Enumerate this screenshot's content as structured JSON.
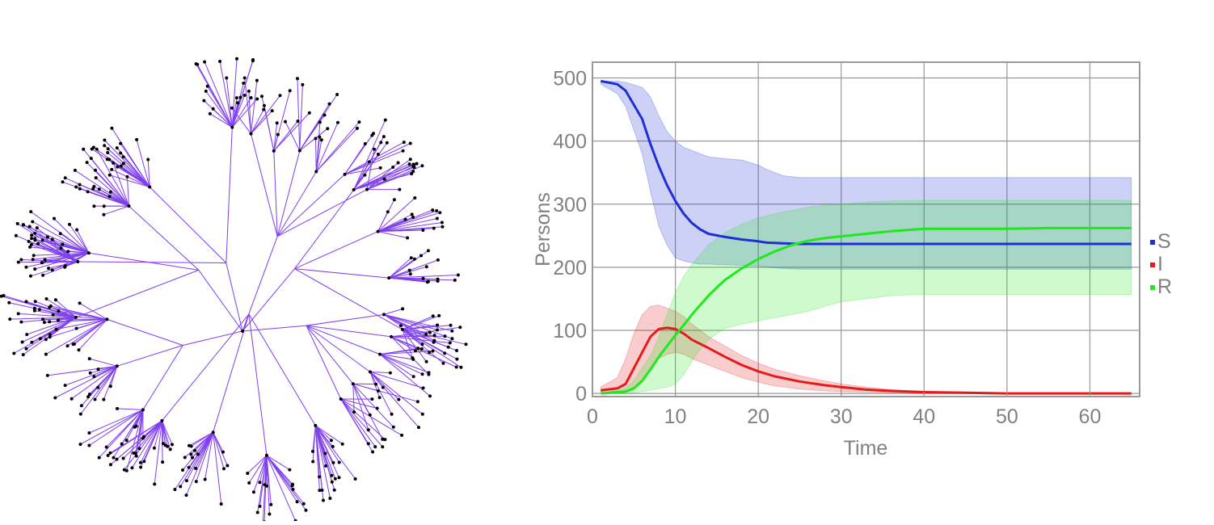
{
  "colors": {
    "tree_edge": "#7f3fef",
    "tree_node": "#000000",
    "S": "#1d2fd6",
    "I": "#e51b1b",
    "R": "#1fe81f",
    "grid": "#999999",
    "frame": "#999999",
    "text": "#808080"
  },
  "tree": {
    "type": "contact-tree"
  },
  "chart_data": {
    "type": "line",
    "xlabel": "Time",
    "ylabel": "Persons",
    "xlim": [
      0,
      66
    ],
    "ylim": [
      -5,
      525
    ],
    "xticks": [
      0,
      10,
      20,
      30,
      40,
      50,
      60
    ],
    "yticks": [
      0,
      100,
      200,
      300,
      400,
      500
    ],
    "grid": true,
    "legend_placement": "right",
    "series": [
      {
        "name": "S",
        "color": "#1d2fd6",
        "x": [
          1,
          3,
          4,
          6,
          7,
          8,
          9,
          10,
          11,
          12,
          13,
          14,
          16,
          18,
          20,
          21,
          23,
          25,
          30,
          40,
          50,
          65
        ],
        "y": [
          495,
          490,
          480,
          435,
          395,
          360,
          330,
          305,
          285,
          270,
          260,
          253,
          248,
          244,
          241,
          239,
          238,
          237,
          237,
          237,
          237,
          237
        ],
        "band_upper": [
          495,
          495,
          493,
          485,
          470,
          440,
          415,
          400,
          390,
          385,
          380,
          375,
          372,
          370,
          362,
          355,
          345,
          342,
          342,
          342,
          342,
          342
        ],
        "band_lower": [
          490,
          475,
          455,
          380,
          320,
          265,
          235,
          215,
          210,
          207,
          205,
          205,
          204,
          203,
          202,
          200,
          198,
          197,
          197,
          197,
          197,
          197
        ]
      },
      {
        "name": "I",
        "color": "#e51b1b",
        "x": [
          1,
          3,
          4,
          5,
          6,
          7,
          8,
          9,
          10,
          11,
          12,
          14,
          16,
          18,
          20,
          22,
          25,
          28,
          30,
          33,
          36,
          40,
          45,
          50,
          65
        ],
        "y": [
          5,
          8,
          15,
          40,
          65,
          90,
          102,
          104,
          102,
          95,
          85,
          72,
          58,
          45,
          35,
          27,
          19,
          13,
          10,
          6,
          4,
          2,
          1,
          0,
          0
        ],
        "band_upper": [
          10,
          25,
          55,
          95,
          125,
          138,
          140,
          135,
          130,
          122,
          110,
          90,
          75,
          60,
          48,
          38,
          28,
          20,
          15,
          10,
          6,
          3,
          2,
          1,
          1
        ],
        "band_lower": [
          2,
          3,
          4,
          8,
          20,
          40,
          55,
          62,
          65,
          62,
          55,
          45,
          35,
          25,
          18,
          12,
          7,
          4,
          3,
          2,
          1,
          0,
          0,
          0,
          0
        ]
      },
      {
        "name": "R",
        "color": "#1fe81f",
        "x": [
          1,
          4,
          5,
          6,
          7,
          8,
          9,
          10,
          11,
          12,
          13,
          14,
          15,
          16,
          18,
          20,
          22,
          24,
          26,
          28,
          30,
          33,
          36,
          40,
          50,
          55,
          65
        ],
        "y": [
          0,
          3,
          8,
          20,
          38,
          58,
          75,
          92,
          108,
          125,
          140,
          155,
          168,
          180,
          198,
          213,
          225,
          235,
          242,
          246,
          249,
          253,
          257,
          261,
          261,
          262,
          262
        ],
        "band_upper": [
          0,
          8,
          20,
          40,
          60,
          90,
          125,
          160,
          185,
          205,
          220,
          235,
          245,
          255,
          268,
          278,
          285,
          290,
          295,
          298,
          300,
          303,
          305,
          306,
          306,
          306,
          306
        ],
        "band_lower": [
          0,
          0,
          1,
          3,
          5,
          8,
          10,
          15,
          30,
          50,
          70,
          85,
          95,
          103,
          110,
          115,
          120,
          125,
          130,
          138,
          145,
          150,
          155,
          157,
          157,
          157,
          157
        ]
      }
    ]
  }
}
